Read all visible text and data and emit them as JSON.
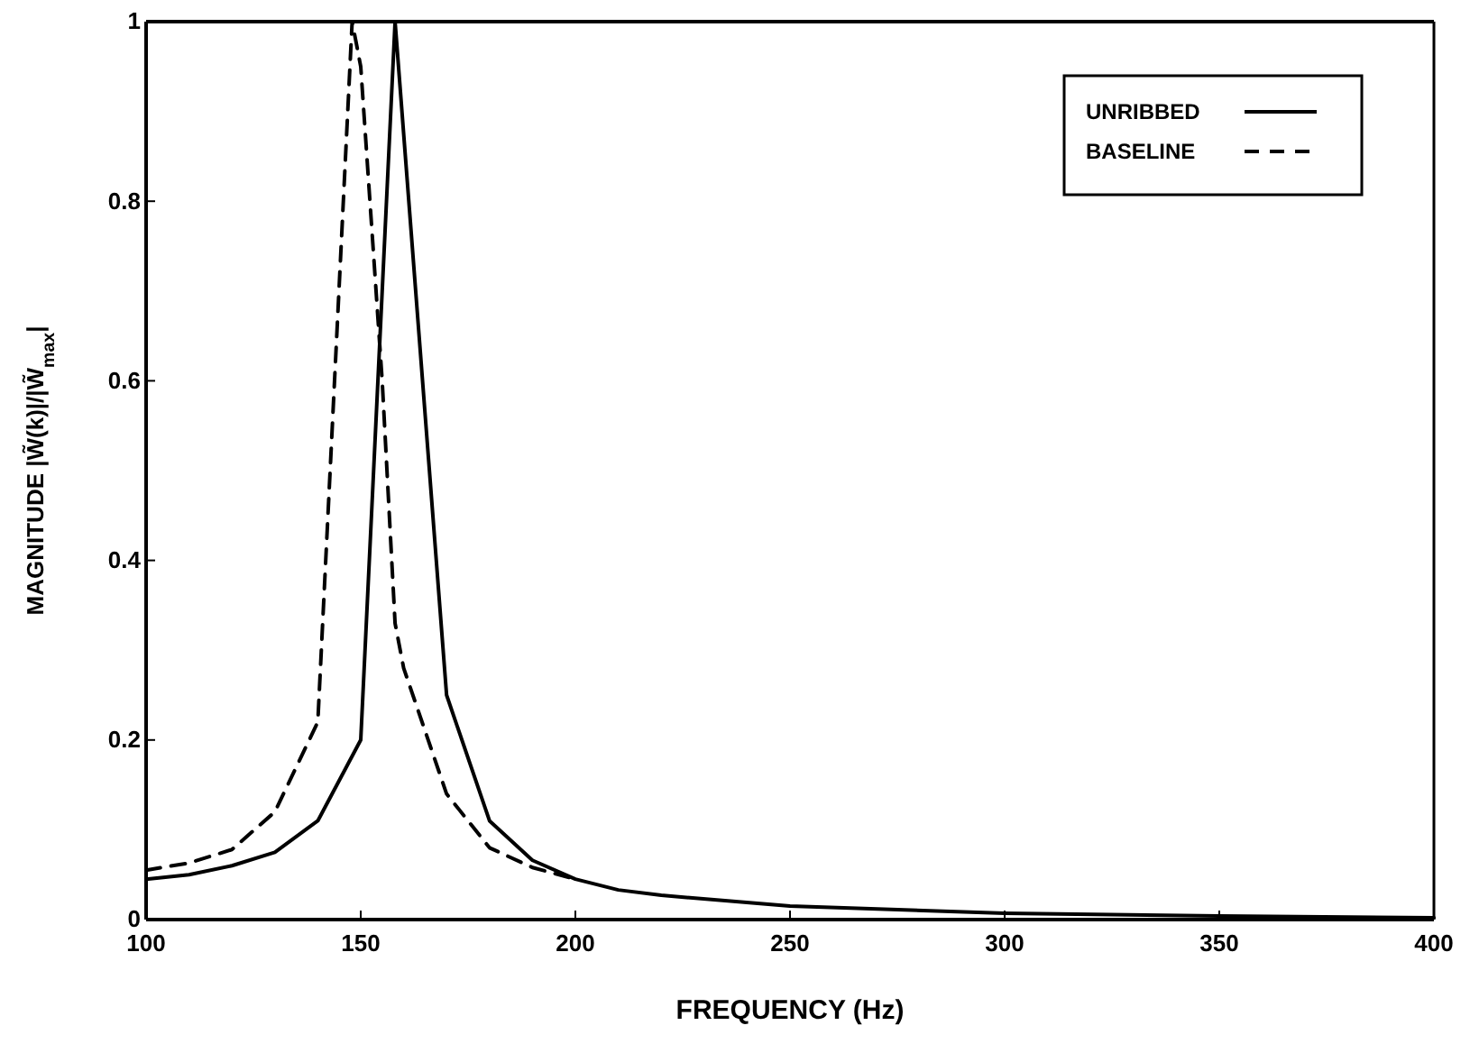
{
  "chart_data": {
    "type": "line",
    "xlabel": "FREQUENCY (Hz)",
    "ylabel": "MAGNITUDE  |W̃(k)|/|W̃$_{max}$|",
    "xlim": [
      100,
      400
    ],
    "xticks": [
      100,
      150,
      200,
      250,
      300,
      350,
      400
    ],
    "ylim": [
      0,
      1
    ],
    "yticks": [
      0,
      0.2,
      0.4,
      0.6,
      0.8,
      1
    ],
    "grid": false,
    "legend": "top right",
    "marker": "none",
    "series": [
      {
        "name": "UNRIBBED",
        "color": "#000000",
        "line_style": "solid",
        "x": [
          100,
          110,
          120,
          130,
          140,
          150,
          158,
          170,
          180,
          190,
          200,
          210,
          220,
          250,
          300,
          350,
          400
        ],
        "values": [
          0.045,
          0.05,
          0.06,
          0.075,
          0.11,
          0.2,
          1.0,
          0.25,
          0.11,
          0.066,
          0.045,
          0.033,
          0.027,
          0.015,
          0.007,
          0.004,
          0.002
        ]
      },
      {
        "name": "BASELINE",
        "color": "#000000",
        "line_style": "dashed",
        "x": [
          100,
          110,
          120,
          130,
          140,
          148,
          150,
          155,
          158,
          160,
          170,
          180,
          190,
          200
        ],
        "values": [
          0.055,
          0.063,
          0.078,
          0.12,
          0.22,
          1.0,
          0.95,
          0.6,
          0.33,
          0.28,
          0.14,
          0.08,
          0.058,
          0.045
        ]
      }
    ]
  }
}
